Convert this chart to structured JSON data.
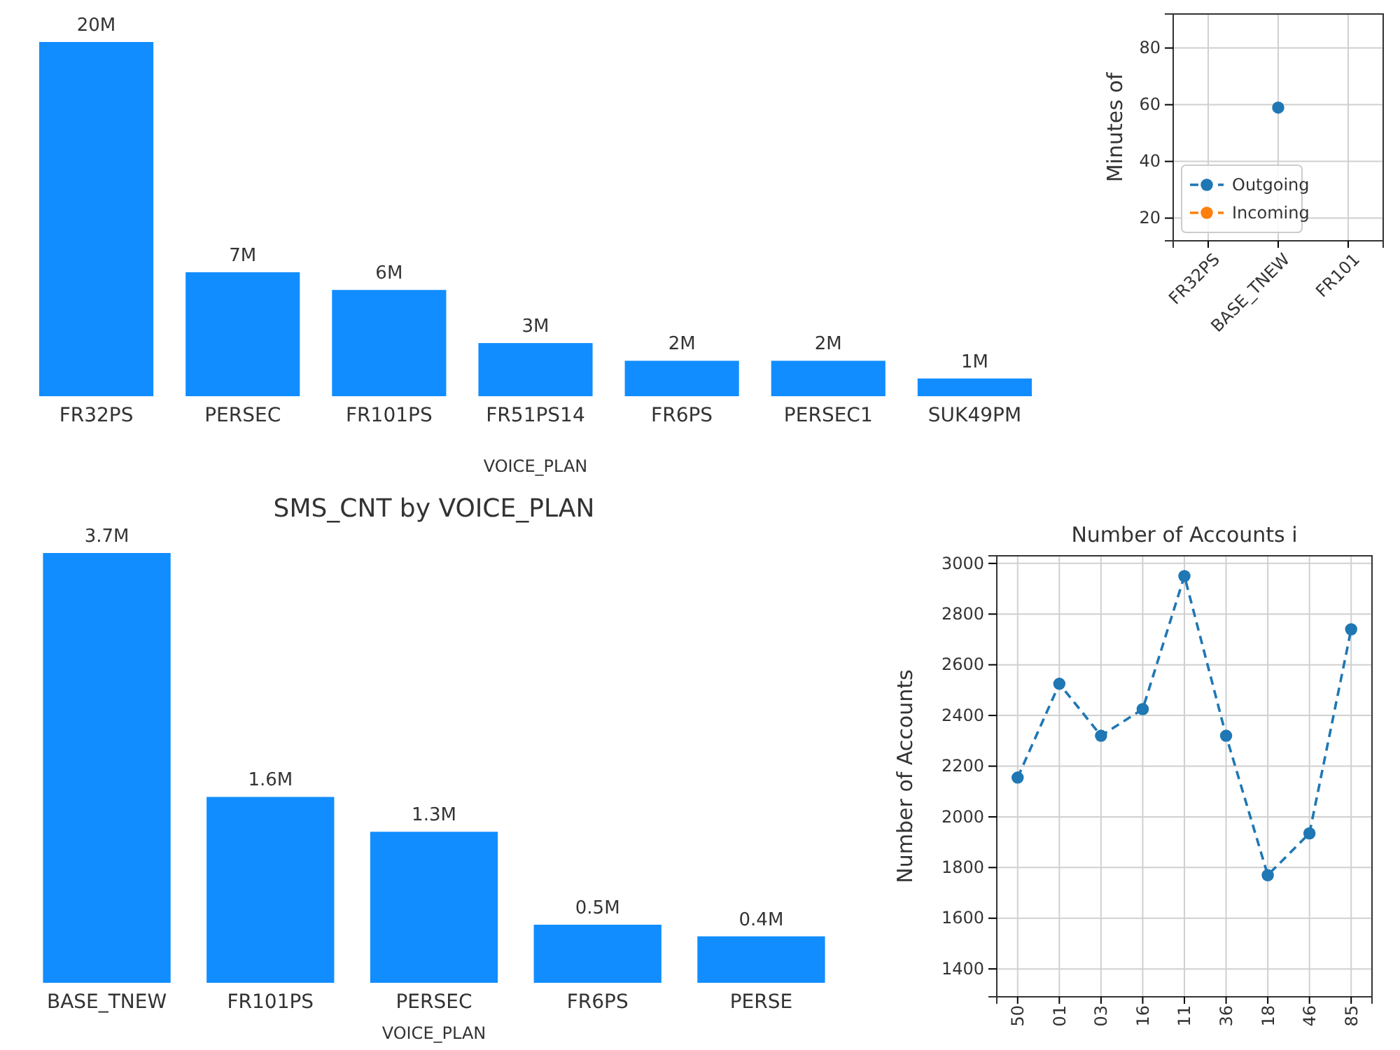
{
  "chart_data": [
    {
      "type": "bar",
      "xlabel": "VOICE_PLAN",
      "categories": [
        "FR32PS",
        "PERSEC",
        "FR101PS",
        "FR51PS14",
        "FR6PS",
        "PERSEC1",
        "SUK49PM"
      ],
      "values": [
        20,
        7,
        6,
        3,
        2,
        2,
        1
      ],
      "value_labels": [
        "20M",
        "7M",
        "6M",
        "3M",
        "2M",
        "2M",
        "1M"
      ],
      "color": "#118dff",
      "tick_labels": "x"
    },
    {
      "type": "line",
      "ylabel": "Minutes of",
      "categories": [
        "FR32PS",
        "BASE_TNEW",
        "FR101"
      ],
      "series": [
        {
          "name": "Outgoing",
          "color": "#1f77b4",
          "values": [
            null,
            59,
            null
          ]
        },
        {
          "name": "Incoming",
          "color": "#ff7f0e",
          "values": [
            null,
            null,
            null
          ]
        }
      ],
      "ylim": [
        12,
        92
      ],
      "yticks": [
        20,
        40,
        60,
        80
      ],
      "grid": true,
      "legend": "bottom left",
      "marker": "circle",
      "line_style": "dashed"
    },
    {
      "type": "bar",
      "title": "SMS_CNT by VOICE_PLAN",
      "xlabel": "VOICE_PLAN",
      "categories": [
        "BASE_TNEW",
        "FR101PS",
        "PERSEC",
        "FR6PS",
        "PERSE"
      ],
      "values": [
        3.7,
        1.6,
        1.3,
        0.5,
        0.4
      ],
      "value_labels": [
        "3.7M",
        "1.6M",
        "1.3M",
        "0.5M",
        "0.4M"
      ],
      "color": "#118dff",
      "tick_labels": "x"
    },
    {
      "type": "line",
      "title": "Number of Accounts i",
      "ylabel": "Number of Accounts",
      "categories": [
        "50",
        "01",
        "03",
        "16",
        "11",
        "36",
        "18",
        "46",
        "85"
      ],
      "series": [
        {
          "color": "#1f77b4",
          "values": [
            2155,
            2525,
            2320,
            2425,
            2950,
            2320,
            1770,
            1935,
            2740
          ]
        }
      ],
      "ylim": [
        1290,
        3030
      ],
      "yticks": [
        1400,
        1600,
        1800,
        2000,
        2200,
        2400,
        2600,
        2800,
        3000
      ],
      "grid": true,
      "marker": "circle",
      "line_style": "dashed"
    }
  ]
}
